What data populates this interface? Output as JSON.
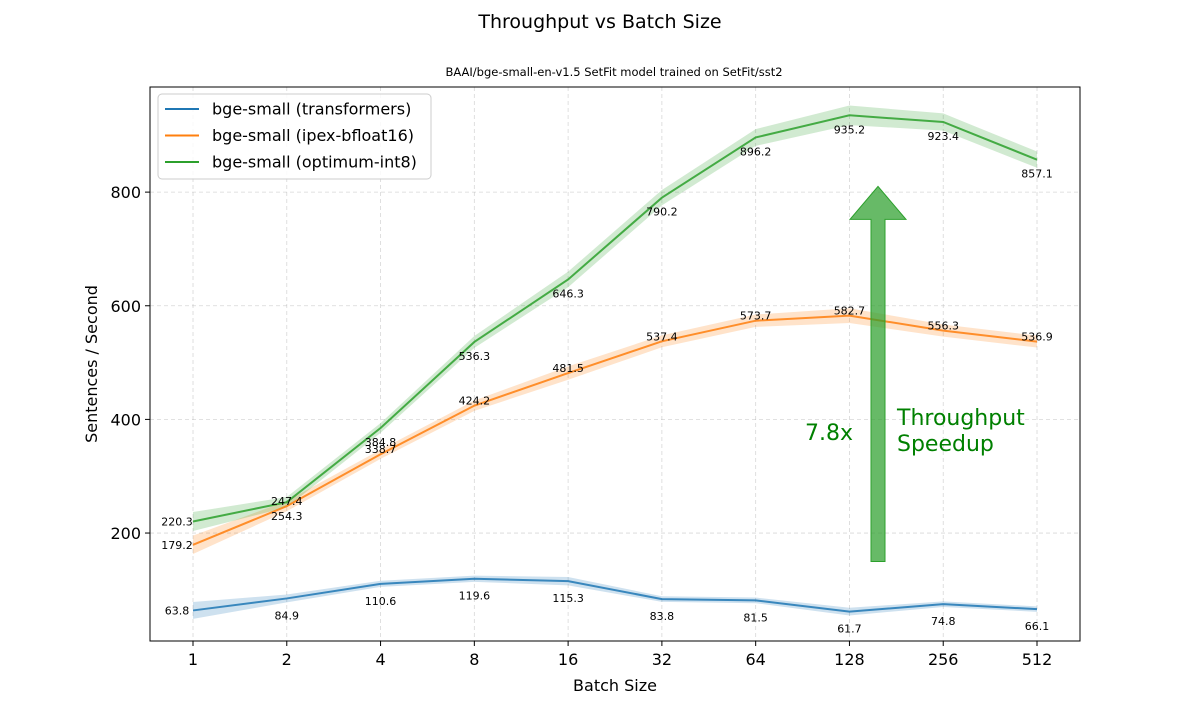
{
  "chart_data": {
    "type": "line",
    "title": "Throughput vs Batch Size",
    "subtitle": "BAAI/bge-small-en-v1.5 SetFit model trained on SetFit/sst2",
    "xlabel": "Batch Size",
    "ylabel": "Sentences / Second",
    "x_scale": "log2",
    "categories": [
      "1",
      "2",
      "4",
      "8",
      "16",
      "32",
      "64",
      "128",
      "256",
      "512"
    ],
    "ylim": [
      10,
      985
    ],
    "yticks": [
      200,
      400,
      600,
      800
    ],
    "grid": true,
    "legend_position": "top-left",
    "series": [
      {
        "name": "bge-small (transformers)",
        "color": "#1f77b4",
        "values": [
          63.8,
          84.9,
          110.6,
          119.6,
          115.3,
          83.8,
          81.5,
          61.7,
          74.8,
          66.1
        ],
        "labels": [
          "63.8",
          "84.9",
          "110.6",
          "119.6",
          "115.3",
          "83.8",
          "81.5",
          "61.7",
          "74.8",
          "66.1"
        ]
      },
      {
        "name": "bge-small (ipex-bfloat16)",
        "color": "#ff7f0e",
        "values": [
          179.2,
          247.4,
          338.7,
          424.2,
          481.5,
          537.4,
          573.7,
          582.7,
          556.3,
          536.9
        ],
        "labels": [
          "179.2",
          "247.4",
          "338.7",
          "424.2",
          "481.5",
          "537.4",
          "573.7",
          "582.7",
          "556.3",
          "536.9"
        ]
      },
      {
        "name": "bge-small (optimum-int8)",
        "color": "#2ca02c",
        "values": [
          220.3,
          254.3,
          384.8,
          536.3,
          646.3,
          790.2,
          896.2,
          935.2,
          923.4,
          857.1
        ],
        "labels": [
          "220.3",
          "254.3",
          "384.8",
          "536.3",
          "646.3",
          "790.2",
          "896.2",
          "935.2",
          "923.4",
          "857.1"
        ]
      }
    ],
    "annotations": {
      "speedup_value": "7.8x",
      "speedup_caption_line1": "Throughput",
      "speedup_caption_line2": "Speedup",
      "color": "#008000",
      "arrow_color": "#2ca02c",
      "arrow_from_y": 150,
      "arrow_to_y": 810
    }
  }
}
